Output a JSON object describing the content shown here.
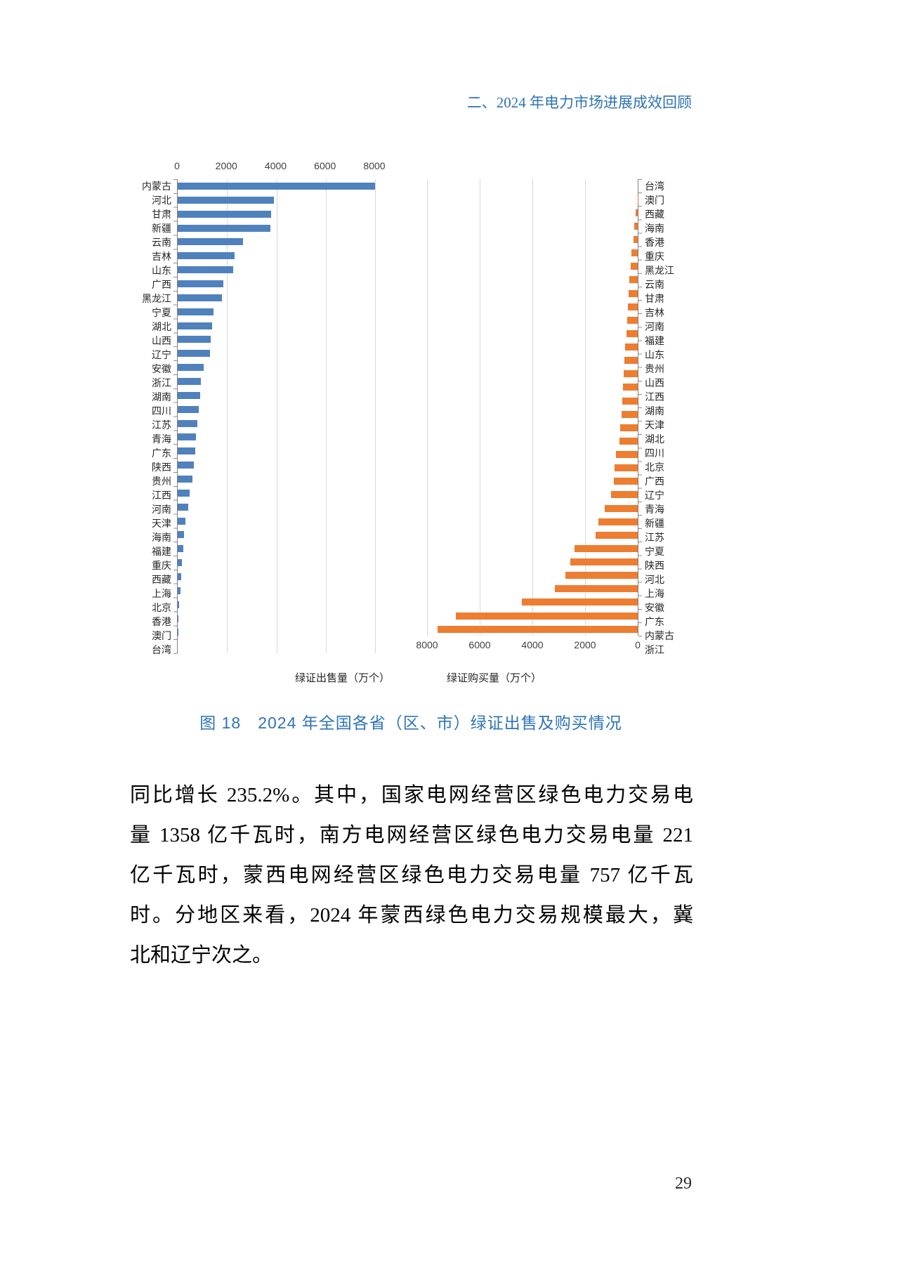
{
  "header": {
    "title": "二、2024 年电力市场进展成效回顾"
  },
  "chart_data": {
    "type": "bar",
    "orientation": "horizontal",
    "layout": "mirrored-tornado",
    "xlim": [
      0,
      8000
    ],
    "grid": true,
    "left_axis_ticks": [
      "0",
      "2000",
      "4000",
      "6000",
      "8000"
    ],
    "right_axis_ticks": [
      "8000",
      "6000",
      "4000",
      "2000",
      "0"
    ],
    "series": [
      {
        "name": "绿证出售量（万个）",
        "side": "left",
        "color": "#4f81bd",
        "categories": [
          "内蒙古",
          "河北",
          "甘肃",
          "新疆",
          "云南",
          "吉林",
          "山东",
          "广西",
          "黑龙江",
          "宁夏",
          "湖北",
          "山西",
          "辽宁",
          "安徽",
          "浙江",
          "湖南",
          "四川",
          "江苏",
          "青海",
          "广东",
          "陕西",
          "贵州",
          "江西",
          "河南",
          "天津",
          "海南",
          "福建",
          "重庆",
          "西藏",
          "上海",
          "北京",
          "香港",
          "澳门",
          "台湾"
        ],
        "values": [
          8000,
          3900,
          3800,
          3750,
          2650,
          2300,
          2250,
          1850,
          1800,
          1450,
          1400,
          1350,
          1300,
          1050,
          950,
          900,
          850,
          800,
          750,
          700,
          650,
          600,
          480,
          420,
          320,
          270,
          220,
          180,
          140,
          100,
          60,
          30,
          10,
          0
        ]
      },
      {
        "name": "绿证购买量（万个）",
        "side": "right",
        "color": "#ed7d31",
        "categories": [
          "台湾",
          "澳门",
          "西藏",
          "海南",
          "香港",
          "重庆",
          "黑龙江",
          "云南",
          "甘肃",
          "吉林",
          "河南",
          "福建",
          "山东",
          "贵州",
          "山西",
          "江西",
          "湖南",
          "天津",
          "湖北",
          "四川",
          "北京",
          "广西",
          "辽宁",
          "青海",
          "新疆",
          "江苏",
          "宁夏",
          "陕西",
          "河北",
          "上海",
          "安徽",
          "广东",
          "内蒙古",
          "浙江"
        ],
        "values": [
          0,
          10,
          80,
          130,
          160,
          240,
          280,
          320,
          350,
          380,
          410,
          440,
          470,
          500,
          530,
          560,
          590,
          620,
          660,
          700,
          820,
          870,
          920,
          1020,
          1250,
          1500,
          1600,
          2400,
          2550,
          2750,
          3150,
          4400,
          6900,
          7600
        ]
      }
    ]
  },
  "figure": {
    "caption": "图 18　2024 年全国各省（区、市）绿证出售及购买情况"
  },
  "body": {
    "lines": [
      "同比增长 235.2%。其中，国家电网经营区绿色电力交易电",
      "量 1358 亿千瓦时，南方电网经营区绿色电力交易电量 221",
      "亿千瓦时，蒙西电网经营区绿色电力交易电量 757 亿千瓦",
      "时。分地区来看，2024 年蒙西绿色电力交易规模最大，冀",
      "北和辽宁次之。"
    ]
  },
  "page_number": "29"
}
